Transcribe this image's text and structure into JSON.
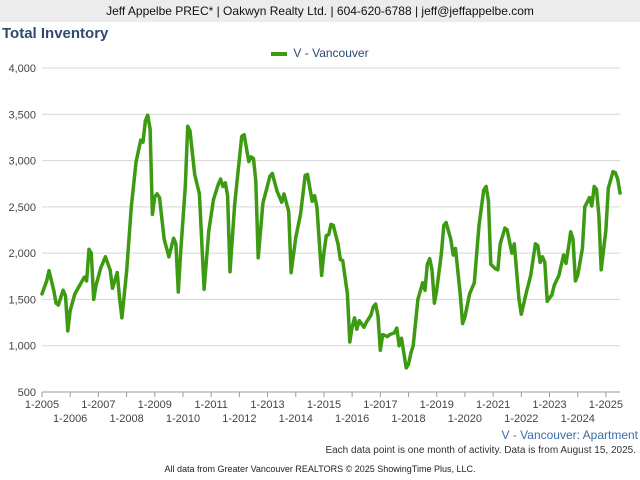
{
  "header": {
    "agent_line": "Jeff Appelbe PREC* | Oakwyn Realty Ltd. | 604-620-6788 | jeff@jeffappelbe.com"
  },
  "footer": {
    "series_label": "V - Vancouver: Apartment",
    "note": "Each data point is one month of activity. Data is from August 15, 2025.",
    "source": "All data from Greater Vancouver REALTORS © 2025 ShowingTime Plus, LLC."
  },
  "colors": {
    "series": "#3d9a12",
    "title": "#2f4a6d",
    "grid": "#d6d6d6"
  },
  "chart_data": {
    "type": "line",
    "title": "Total Inventory",
    "xlabel": "",
    "ylabel": "",
    "ylim": [
      500,
      4000
    ],
    "xlim": [
      "2005-01",
      "2025-07"
    ],
    "grid": true,
    "legend": "top-center",
    "yticks": [
      500,
      1000,
      1500,
      2000,
      2500,
      3000,
      3500,
      4000
    ],
    "ytick_labels": [
      "500",
      "1,000",
      "1,500",
      "2,000",
      "2,500",
      "3,000",
      "3,500",
      "4,000"
    ],
    "xtick_labels": [
      "1-2005",
      "1-2006",
      "1-2007",
      "1-2008",
      "1-2009",
      "1-2010",
      "1-2011",
      "1-2012",
      "1-2013",
      "1-2014",
      "1-2015",
      "1-2016",
      "1-2017",
      "1-2018",
      "1-2019",
      "1-2020",
      "1-2021",
      "1-2022",
      "1-2023",
      "1-2024",
      "1-2025"
    ],
    "series": [
      {
        "name": "V - Vancouver",
        "points": [
          [
            "2005-01",
            1560
          ],
          [
            "2005-03",
            1700
          ],
          [
            "2005-04",
            1810
          ],
          [
            "2005-06",
            1600
          ],
          [
            "2005-07",
            1460
          ],
          [
            "2005-08",
            1440
          ],
          [
            "2005-10",
            1600
          ],
          [
            "2005-11",
            1540
          ],
          [
            "2005-12",
            1160
          ],
          [
            "2006-01",
            1380
          ],
          [
            "2006-03",
            1560
          ],
          [
            "2006-05",
            1650
          ],
          [
            "2006-07",
            1740
          ],
          [
            "2006-08",
            1700
          ],
          [
            "2006-09",
            2040
          ],
          [
            "2006-10",
            2000
          ],
          [
            "2006-11",
            1500
          ],
          [
            "2006-12",
            1650
          ],
          [
            "2007-02",
            1840
          ],
          [
            "2007-04",
            1960
          ],
          [
            "2007-06",
            1820
          ],
          [
            "2007-07",
            1620
          ],
          [
            "2007-09",
            1790
          ],
          [
            "2007-10",
            1520
          ],
          [
            "2007-11",
            1300
          ],
          [
            "2008-01",
            1800
          ],
          [
            "2008-03",
            2500
          ],
          [
            "2008-05",
            2980
          ],
          [
            "2008-07",
            3220
          ],
          [
            "2008-08",
            3200
          ],
          [
            "2008-09",
            3430
          ],
          [
            "2008-10",
            3490
          ],
          [
            "2008-11",
            3340
          ],
          [
            "2008-12",
            2420
          ],
          [
            "2009-01",
            2610
          ],
          [
            "2009-02",
            2640
          ],
          [
            "2009-03",
            2600
          ],
          [
            "2009-05",
            2150
          ],
          [
            "2009-07",
            1960
          ],
          [
            "2009-09",
            2160
          ],
          [
            "2009-10",
            2100
          ],
          [
            "2009-11",
            1580
          ],
          [
            "2009-12",
            2000
          ],
          [
            "2010-02",
            2720
          ],
          [
            "2010-03",
            3370
          ],
          [
            "2010-04",
            3320
          ],
          [
            "2010-06",
            2850
          ],
          [
            "2010-08",
            2640
          ],
          [
            "2010-10",
            1610
          ],
          [
            "2010-12",
            2240
          ],
          [
            "2011-02",
            2580
          ],
          [
            "2011-04",
            2740
          ],
          [
            "2011-05",
            2800
          ],
          [
            "2011-06",
            2720
          ],
          [
            "2011-07",
            2760
          ],
          [
            "2011-08",
            2620
          ],
          [
            "2011-09",
            1800
          ],
          [
            "2011-11",
            2530
          ],
          [
            "2012-02",
            3260
          ],
          [
            "2012-03",
            3280
          ],
          [
            "2012-05",
            2990
          ],
          [
            "2012-06",
            3040
          ],
          [
            "2012-07",
            3020
          ],
          [
            "2012-08",
            2780
          ],
          [
            "2012-09",
            1950
          ],
          [
            "2012-11",
            2540
          ],
          [
            "2013-02",
            2830
          ],
          [
            "2013-03",
            2860
          ],
          [
            "2013-05",
            2670
          ],
          [
            "2013-07",
            2550
          ],
          [
            "2013-08",
            2640
          ],
          [
            "2013-10",
            2450
          ],
          [
            "2013-11",
            1790
          ],
          [
            "2014-01",
            2170
          ],
          [
            "2014-03",
            2420
          ],
          [
            "2014-05",
            2840
          ],
          [
            "2014-06",
            2850
          ],
          [
            "2014-07",
            2700
          ],
          [
            "2014-08",
            2560
          ],
          [
            "2014-09",
            2620
          ],
          [
            "2014-10",
            2500
          ],
          [
            "2014-12",
            1760
          ],
          [
            "2015-01",
            2010
          ],
          [
            "2015-02",
            2190
          ],
          [
            "2015-03",
            2200
          ],
          [
            "2015-04",
            2310
          ],
          [
            "2015-05",
            2300
          ],
          [
            "2015-07",
            2100
          ],
          [
            "2015-08",
            1930
          ],
          [
            "2015-09",
            1920
          ],
          [
            "2015-11",
            1560
          ],
          [
            "2015-12",
            1040
          ],
          [
            "2016-01",
            1200
          ],
          [
            "2016-02",
            1300
          ],
          [
            "2016-03",
            1180
          ],
          [
            "2016-04",
            1270
          ],
          [
            "2016-06",
            1200
          ],
          [
            "2016-07",
            1250
          ],
          [
            "2016-09",
            1330
          ],
          [
            "2016-10",
            1420
          ],
          [
            "2016-11",
            1450
          ],
          [
            "2016-12",
            1320
          ],
          [
            "2017-01",
            950
          ],
          [
            "2017-02",
            1120
          ],
          [
            "2017-04",
            1100
          ],
          [
            "2017-05",
            1120
          ],
          [
            "2017-07",
            1140
          ],
          [
            "2017-08",
            1190
          ],
          [
            "2017-09",
            1000
          ],
          [
            "2017-10",
            1080
          ],
          [
            "2017-12",
            760
          ],
          [
            "2018-01",
            800
          ],
          [
            "2018-02",
            920
          ],
          [
            "2018-03",
            1000
          ],
          [
            "2018-05",
            1500
          ],
          [
            "2018-07",
            1680
          ],
          [
            "2018-08",
            1600
          ],
          [
            "2018-09",
            1880
          ],
          [
            "2018-10",
            1940
          ],
          [
            "2018-11",
            1820
          ],
          [
            "2018-12",
            1460
          ],
          [
            "2019-01",
            1600
          ],
          [
            "2019-03",
            2000
          ],
          [
            "2019-04",
            2300
          ],
          [
            "2019-05",
            2330
          ],
          [
            "2019-07",
            2150
          ],
          [
            "2019-08",
            1980
          ],
          [
            "2019-09",
            2050
          ],
          [
            "2019-11",
            1560
          ],
          [
            "2019-12",
            1240
          ],
          [
            "2020-01",
            1310
          ],
          [
            "2020-03",
            1560
          ],
          [
            "2020-05",
            1680
          ],
          [
            "2020-07",
            2300
          ],
          [
            "2020-09",
            2680
          ],
          [
            "2020-10",
            2720
          ],
          [
            "2020-11",
            2570
          ],
          [
            "2020-12",
            1880
          ],
          [
            "2021-02",
            1830
          ],
          [
            "2021-03",
            1820
          ],
          [
            "2021-04",
            2100
          ],
          [
            "2021-06",
            2270
          ],
          [
            "2021-07",
            2250
          ],
          [
            "2021-08",
            2120
          ],
          [
            "2021-09",
            2000
          ],
          [
            "2021-10",
            2100
          ],
          [
            "2021-12",
            1500
          ],
          [
            "2022-01",
            1340
          ],
          [
            "2022-03",
            1560
          ],
          [
            "2022-05",
            1760
          ],
          [
            "2022-07",
            2100
          ],
          [
            "2022-08",
            2080
          ],
          [
            "2022-09",
            1900
          ],
          [
            "2022-10",
            1960
          ],
          [
            "2022-11",
            1900
          ],
          [
            "2022-12",
            1480
          ],
          [
            "2023-02",
            1550
          ],
          [
            "2023-03",
            1650
          ],
          [
            "2023-05",
            1760
          ],
          [
            "2023-07",
            1980
          ],
          [
            "2023-08",
            1890
          ],
          [
            "2023-09",
            2050
          ],
          [
            "2023-10",
            2230
          ],
          [
            "2023-11",
            2150
          ],
          [
            "2023-12",
            1700
          ],
          [
            "2024-01",
            1760
          ],
          [
            "2024-03",
            2050
          ],
          [
            "2024-04",
            2500
          ],
          [
            "2024-06",
            2600
          ],
          [
            "2024-07",
            2510
          ],
          [
            "2024-08",
            2720
          ],
          [
            "2024-09",
            2690
          ],
          [
            "2024-10",
            2400
          ],
          [
            "2024-11",
            1820
          ],
          [
            "2025-01",
            2250
          ],
          [
            "2025-02",
            2700
          ],
          [
            "2025-04",
            2880
          ],
          [
            "2025-05",
            2870
          ],
          [
            "2025-06",
            2800
          ],
          [
            "2025-07",
            2650
          ]
        ]
      }
    ]
  }
}
